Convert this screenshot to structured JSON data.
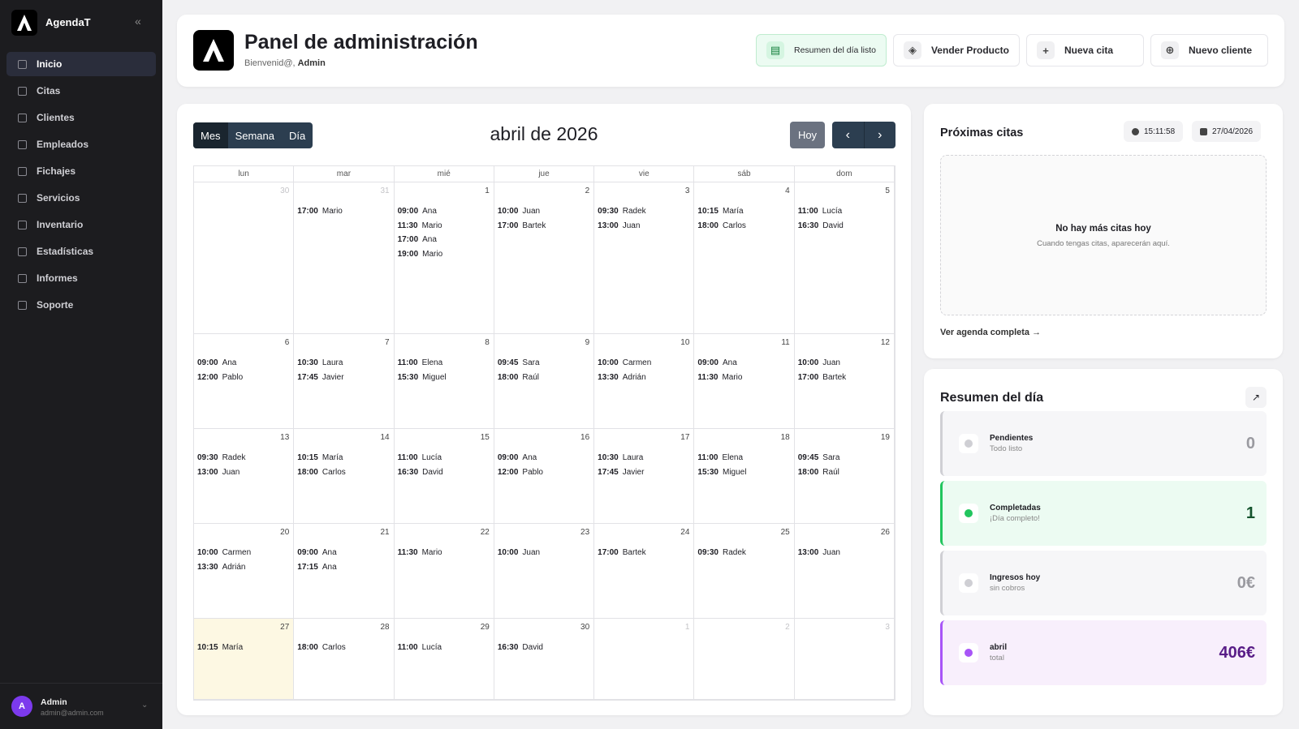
{
  "sidebar": {
    "app_name": "AgendaT",
    "nav": [
      "Inicio",
      "Citas",
      "Clientes",
      "Empleados",
      "Fichajes",
      "Servicios",
      "Inventario",
      "Estadísticas",
      "Informes",
      "Soporte"
    ],
    "active": 0,
    "user": {
      "initial": "A",
      "name": "Admin",
      "email": "admin@admin.com"
    }
  },
  "header": {
    "title": "Panel de administración",
    "greeting": "Bienvenid@,",
    "user": "Admin",
    "actions": [
      "Resumen del día listo",
      "Vender Producto",
      "Nueva cita",
      "Nuevo cliente"
    ]
  },
  "calendar": {
    "views": [
      "Mes",
      "Semana",
      "Día"
    ],
    "active_view": 0,
    "title": "abril de 2026",
    "today_button": "Hoy",
    "weekdays": [
      "lun",
      "mar",
      "mié",
      "jue",
      "vie",
      "sáb",
      "dom"
    ],
    "weeks": [
      [
        {
          "day": "30",
          "other_month": true,
          "events": []
        },
        {
          "day": "31",
          "other_month": true,
          "events": [
            {
              "time": "17:00",
              "name": "Mario"
            }
          ]
        },
        {
          "day": "1",
          "events": [
            {
              "time": "09:00",
              "name": "Ana"
            },
            {
              "time": "11:30",
              "name": "Mario"
            },
            {
              "time": "17:00",
              "name": "Ana"
            },
            {
              "time": "19:00",
              "name": "Mario"
            }
          ]
        },
        {
          "day": "2",
          "events": [
            {
              "time": "10:00",
              "name": "Juan"
            },
            {
              "time": "17:00",
              "name": "Bartek"
            }
          ]
        },
        {
          "day": "3",
          "events": [
            {
              "time": "09:30",
              "name": "Radek"
            },
            {
              "time": "13:00",
              "name": "Juan"
            }
          ]
        },
        {
          "day": "4",
          "events": [
            {
              "time": "10:15",
              "name": "María"
            },
            {
              "time": "18:00",
              "name": "Carlos"
            }
          ]
        },
        {
          "day": "5",
          "events": [
            {
              "time": "11:00",
              "name": "Lucía"
            },
            {
              "time": "16:30",
              "name": "David"
            }
          ]
        }
      ],
      [
        {
          "day": "6",
          "events": [
            {
              "time": "09:00",
              "name": "Ana"
            },
            {
              "time": "12:00",
              "name": "Pablo"
            }
          ]
        },
        {
          "day": "7",
          "events": [
            {
              "time": "10:30",
              "name": "Laura"
            },
            {
              "time": "17:45",
              "name": "Javier"
            }
          ]
        },
        {
          "day": "8",
          "events": [
            {
              "time": "11:00",
              "name": "Elena"
            },
            {
              "time": "15:30",
              "name": "Miguel"
            }
          ]
        },
        {
          "day": "9",
          "events": [
            {
              "time": "09:45",
              "name": "Sara"
            },
            {
              "time": "18:00",
              "name": "Raúl"
            }
          ]
        },
        {
          "day": "10",
          "events": [
            {
              "time": "10:00",
              "name": "Carmen"
            },
            {
              "time": "13:30",
              "name": "Adrián"
            }
          ]
        },
        {
          "day": "11",
          "events": [
            {
              "time": "09:00",
              "name": "Ana"
            },
            {
              "time": "11:30",
              "name": "Mario"
            }
          ]
        },
        {
          "day": "12",
          "events": [
            {
              "time": "10:00",
              "name": "Juan"
            },
            {
              "time": "17:00",
              "name": "Bartek"
            }
          ]
        }
      ],
      [
        {
          "day": "13",
          "events": [
            {
              "time": "09:30",
              "name": "Radek"
            },
            {
              "time": "13:00",
              "name": "Juan"
            }
          ]
        },
        {
          "day": "14",
          "events": [
            {
              "time": "10:15",
              "name": "María"
            },
            {
              "time": "18:00",
              "name": "Carlos"
            }
          ]
        },
        {
          "day": "15",
          "events": [
            {
              "time": "11:00",
              "name": "Lucía"
            },
            {
              "time": "16:30",
              "name": "David"
            }
          ]
        },
        {
          "day": "16",
          "events": [
            {
              "time": "09:00",
              "name": "Ana"
            },
            {
              "time": "12:00",
              "name": "Pablo"
            }
          ]
        },
        {
          "day": "17",
          "events": [
            {
              "time": "10:30",
              "name": "Laura"
            },
            {
              "time": "17:45",
              "name": "Javier"
            }
          ]
        },
        {
          "day": "18",
          "events": [
            {
              "time": "11:00",
              "name": "Elena"
            },
            {
              "time": "15:30",
              "name": "Miguel"
            }
          ]
        },
        {
          "day": "19",
          "events": [
            {
              "time": "09:45",
              "name": "Sara"
            },
            {
              "time": "18:00",
              "name": "Raúl"
            }
          ]
        }
      ],
      [
        {
          "day": "20",
          "events": [
            {
              "time": "10:00",
              "name": "Carmen"
            },
            {
              "time": "13:30",
              "name": "Adrián"
            }
          ]
        },
        {
          "day": "21",
          "events": [
            {
              "time": "09:00",
              "name": "Ana"
            },
            {
              "time": "17:15",
              "name": "Ana"
            }
          ]
        },
        {
          "day": "22",
          "events": [
            {
              "time": "11:30",
              "name": "Mario"
            }
          ]
        },
        {
          "day": "23",
          "events": [
            {
              "time": "10:00",
              "name": "Juan"
            }
          ]
        },
        {
          "day": "24",
          "events": [
            {
              "time": "17:00",
              "name": "Bartek"
            }
          ]
        },
        {
          "day": "25",
          "events": [
            {
              "time": "09:30",
              "name": "Radek"
            }
          ]
        },
        {
          "day": "26",
          "events": [
            {
              "time": "13:00",
              "name": "Juan"
            }
          ]
        }
      ],
      [
        {
          "day": "27",
          "today": true,
          "events": [
            {
              "time": "10:15",
              "name": "María"
            }
          ]
        },
        {
          "day": "28",
          "events": [
            {
              "time": "18:00",
              "name": "Carlos"
            }
          ]
        },
        {
          "day": "29",
          "events": [
            {
              "time": "11:00",
              "name": "Lucía"
            }
          ]
        },
        {
          "day": "30",
          "events": [
            {
              "time": "16:30",
              "name": "David"
            }
          ]
        },
        {
          "day": "1",
          "other_month": true,
          "events": []
        },
        {
          "day": "2",
          "other_month": true,
          "events": []
        },
        {
          "day": "3",
          "other_month": true,
          "events": []
        }
      ]
    ]
  },
  "upcoming": {
    "title": "Próximas citas",
    "time": "15:11:58",
    "date": "27/04/2026",
    "empty_title": "No hay más citas hoy",
    "empty_text": "Cuando tengas citas, aparecerán aquí.",
    "link": "Ver agenda completa"
  },
  "summary": {
    "title": "Resumen del día",
    "items": [
      {
        "label": "Pendientes",
        "sub": "Todo listo",
        "value": "0",
        "color": "#cfcfd4",
        "background": "#f6f6f8",
        "value_color": "#9a9aa0"
      },
      {
        "label": "Completadas",
        "sub": "¡Día completo!",
        "value": "1",
        "color": "#22c55e",
        "background": "#ecfbf2",
        "value_color": "#14532d"
      },
      {
        "label": "Ingresos hoy",
        "sub": "sin cobros",
        "value": "0€",
        "color": "#cfcfd4",
        "background": "#f6f6f8",
        "value_color": "#9a9aa0"
      },
      {
        "label": "abril",
        "sub": "total",
        "value": "406€",
        "color": "#a855f7",
        "background": "#f8effc",
        "value_color": "#581c87"
      }
    ]
  }
}
